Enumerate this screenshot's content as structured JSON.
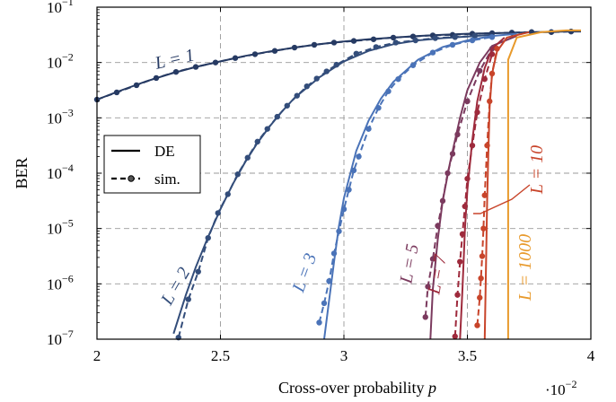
{
  "chart_data": {
    "type": "line",
    "title": "",
    "xlabel": "Cross-over probability p",
    "xlabel_main": "Cross-over probability ",
    "xlabel_var": "p",
    "x_multiplier_base": "·10",
    "x_multiplier_exp": "−2",
    "ylabel": "BER",
    "xlim": [
      2,
      4
    ],
    "ylim_log10": [
      -7,
      -1
    ],
    "y_scale": "log",
    "grid": true,
    "x_ticks": [
      2,
      2.5,
      3,
      3.5,
      4
    ],
    "x_tick_labels": [
      "2",
      "2.5",
      "3",
      "3.5",
      "4"
    ],
    "y_ticks_exp": [
      -7,
      -6,
      -5,
      -4,
      -3,
      -2,
      -1
    ],
    "y_tick_labels": [
      {
        "base": "10",
        "exp": "−7"
      },
      {
        "base": "10",
        "exp": "−6"
      },
      {
        "base": "10",
        "exp": "−5"
      },
      {
        "base": "10",
        "exp": "−4"
      },
      {
        "base": "10",
        "exp": "−3"
      },
      {
        "base": "10",
        "exp": "−2"
      },
      {
        "base": "10",
        "exp": "−1"
      }
    ],
    "legend": {
      "placement": "left",
      "entries": [
        {
          "label": "DE",
          "style": "solid"
        },
        {
          "label": "sim.",
          "style": "dashed-marker"
        }
      ]
    },
    "series": [
      {
        "name": "L = 1",
        "color": "#263a63",
        "de": [
          [
            2.0,
            -2.67
          ],
          [
            2.1,
            -2.5
          ],
          [
            2.2,
            -2.34
          ],
          [
            2.3,
            -2.2
          ],
          [
            2.4,
            -2.08
          ],
          [
            2.5,
            -1.98
          ],
          [
            2.6,
            -1.88
          ],
          [
            2.7,
            -1.8
          ],
          [
            2.8,
            -1.73
          ],
          [
            2.9,
            -1.67
          ],
          [
            3.0,
            -1.62
          ],
          [
            3.1,
            -1.58
          ],
          [
            3.2,
            -1.55
          ],
          [
            3.3,
            -1.52
          ],
          [
            3.4,
            -1.5
          ],
          [
            3.5,
            -1.48
          ],
          [
            3.6,
            -1.47
          ],
          [
            3.7,
            -1.46
          ],
          [
            3.8,
            -1.45
          ],
          [
            3.9,
            -1.44
          ],
          [
            3.96,
            -1.44
          ]
        ],
        "sim": [
          [
            2.0,
            -2.67
          ],
          [
            2.08,
            -2.54
          ],
          [
            2.16,
            -2.41
          ],
          [
            2.24,
            -2.28
          ],
          [
            2.32,
            -2.17
          ],
          [
            2.4,
            -2.08
          ],
          [
            2.48,
            -2.0
          ],
          [
            2.56,
            -1.92
          ],
          [
            2.64,
            -1.85
          ],
          [
            2.72,
            -1.79
          ],
          [
            2.8,
            -1.73
          ],
          [
            2.88,
            -1.68
          ],
          [
            2.96,
            -1.64
          ],
          [
            3.04,
            -1.61
          ],
          [
            3.12,
            -1.58
          ],
          [
            3.2,
            -1.55
          ],
          [
            3.28,
            -1.53
          ],
          [
            3.36,
            -1.51
          ],
          [
            3.44,
            -1.5
          ],
          [
            3.52,
            -1.48
          ],
          [
            3.6,
            -1.47
          ],
          [
            3.68,
            -1.46
          ],
          [
            3.76,
            -1.45
          ],
          [
            3.84,
            -1.45
          ],
          [
            3.92,
            -1.44
          ]
        ]
      },
      {
        "name": "L = 2",
        "color": "#334d7a",
        "de": [
          [
            2.31,
            -6.9
          ],
          [
            2.36,
            -6.2
          ],
          [
            2.4,
            -5.7
          ],
          [
            2.45,
            -5.15
          ],
          [
            2.5,
            -4.65
          ],
          [
            2.55,
            -4.2
          ],
          [
            2.6,
            -3.8
          ],
          [
            2.65,
            -3.45
          ],
          [
            2.7,
            -3.15
          ],
          [
            2.75,
            -2.88
          ],
          [
            2.8,
            -2.64
          ],
          [
            2.9,
            -2.27
          ],
          [
            3.0,
            -1.98
          ],
          [
            3.1,
            -1.79
          ],
          [
            3.2,
            -1.67
          ],
          [
            3.3,
            -1.6
          ],
          [
            3.4,
            -1.56
          ],
          [
            3.5,
            -1.53
          ],
          [
            3.6,
            -1.5
          ]
        ],
        "sim": [
          [
            2.33,
            -6.97
          ],
          [
            2.37,
            -6.28
          ],
          [
            2.41,
            -5.78
          ],
          [
            2.45,
            -5.17
          ],
          [
            2.49,
            -4.72
          ],
          [
            2.53,
            -4.38
          ],
          [
            2.57,
            -4.02
          ],
          [
            2.61,
            -3.72
          ],
          [
            2.65,
            -3.43
          ],
          [
            2.69,
            -3.2
          ],
          [
            2.73,
            -2.98
          ],
          [
            2.77,
            -2.78
          ],
          [
            2.81,
            -2.6
          ],
          [
            2.85,
            -2.43
          ],
          [
            2.89,
            -2.29
          ],
          [
            2.93,
            -2.16
          ],
          [
            2.97,
            -2.04
          ],
          [
            3.05,
            -1.84
          ],
          [
            3.13,
            -1.72
          ],
          [
            3.21,
            -1.64
          ],
          [
            3.29,
            -1.6
          ],
          [
            3.37,
            -1.56
          ],
          [
            3.45,
            -1.54
          ],
          [
            3.53,
            -1.52
          ]
        ]
      },
      {
        "name": "L = 3",
        "color": "#4a73b8",
        "de": [
          [
            2.92,
            -7.0
          ],
          [
            2.94,
            -6.3
          ],
          [
            2.96,
            -5.6
          ],
          [
            2.98,
            -4.95
          ],
          [
            3.0,
            -4.45
          ],
          [
            3.05,
            -3.6
          ],
          [
            3.1,
            -3.05
          ],
          [
            3.15,
            -2.65
          ],
          [
            3.2,
            -2.35
          ],
          [
            3.3,
            -1.95
          ],
          [
            3.4,
            -1.72
          ],
          [
            3.5,
            -1.6
          ],
          [
            3.6,
            -1.52
          ],
          [
            3.7,
            -1.48
          ]
        ],
        "sim": [
          [
            2.9,
            -6.7
          ],
          [
            2.92,
            -6.35
          ],
          [
            2.94,
            -5.95
          ],
          [
            2.96,
            -5.45
          ],
          [
            2.98,
            -5.05
          ],
          [
            3.0,
            -4.65
          ],
          [
            3.02,
            -4.3
          ],
          [
            3.04,
            -3.95
          ],
          [
            3.06,
            -3.7
          ],
          [
            3.1,
            -3.2
          ],
          [
            3.14,
            -2.82
          ],
          [
            3.18,
            -2.52
          ],
          [
            3.22,
            -2.3
          ],
          [
            3.28,
            -2.05
          ],
          [
            3.36,
            -1.82
          ],
          [
            3.44,
            -1.68
          ],
          [
            3.52,
            -1.6
          ],
          [
            3.6,
            -1.54
          ]
        ]
      },
      {
        "name": "L = 5",
        "color": "#7b3a5e",
        "de": [
          [
            3.35,
            -7.0
          ],
          [
            3.36,
            -6.1
          ],
          [
            3.38,
            -5.2
          ],
          [
            3.4,
            -4.5
          ],
          [
            3.43,
            -3.8
          ],
          [
            3.47,
            -3.0
          ],
          [
            3.5,
            -2.5
          ],
          [
            3.55,
            -2.0
          ],
          [
            3.6,
            -1.7
          ],
          [
            3.7,
            -1.52
          ]
        ],
        "sim": [
          [
            3.33,
            -6.6
          ],
          [
            3.34,
            -6.05
          ],
          [
            3.36,
            -5.55
          ],
          [
            3.38,
            -4.95
          ],
          [
            3.4,
            -4.5
          ],
          [
            3.42,
            -4.0
          ],
          [
            3.44,
            -3.65
          ],
          [
            3.46,
            -3.3
          ],
          [
            3.5,
            -2.7
          ],
          [
            3.55,
            -2.15
          ],
          [
            3.6,
            -1.75
          ]
        ]
      },
      {
        "name": "L = 7",
        "color": "#9e2a3c",
        "de": [
          [
            3.47,
            -7.0
          ],
          [
            3.48,
            -6.1
          ],
          [
            3.49,
            -5.0
          ],
          [
            3.5,
            -4.3
          ],
          [
            3.52,
            -3.4
          ],
          [
            3.54,
            -2.7
          ],
          [
            3.57,
            -2.1
          ],
          [
            3.6,
            -1.75
          ],
          [
            3.65,
            -1.55
          ]
        ],
        "sim": [
          [
            3.45,
            -6.95
          ],
          [
            3.46,
            -6.2
          ],
          [
            3.47,
            -5.6
          ],
          [
            3.48,
            -5.1
          ],
          [
            3.49,
            -4.6
          ],
          [
            3.5,
            -4.1
          ],
          [
            3.52,
            -3.5
          ],
          [
            3.54,
            -2.9
          ],
          [
            3.57,
            -2.3
          ],
          [
            3.6,
            -1.85
          ]
        ]
      },
      {
        "name": "L = 10",
        "color": "#c8442a",
        "de": [
          [
            3.57,
            -7.0
          ],
          [
            3.575,
            -5.8
          ],
          [
            3.58,
            -4.5
          ],
          [
            3.585,
            -3.6
          ],
          [
            3.59,
            -2.8
          ],
          [
            3.6,
            -2.2
          ],
          [
            3.62,
            -1.8
          ],
          [
            3.66,
            -1.55
          ],
          [
            3.75,
            -1.45
          ]
        ],
        "sim": [
          [
            3.54,
            -6.75
          ],
          [
            3.55,
            -6.25
          ],
          [
            3.555,
            -5.9
          ],
          [
            3.56,
            -5.5
          ],
          [
            3.565,
            -5.0
          ],
          [
            3.57,
            -4.4
          ],
          [
            3.58,
            -3.5
          ],
          [
            3.59,
            -2.7
          ],
          [
            3.6,
            -2.2
          ],
          [
            3.62,
            -1.75
          ]
        ]
      },
      {
        "name": "L = 1000",
        "color": "#e89a2c",
        "de": [
          [
            3.665,
            -7.0
          ],
          [
            3.665,
            -1.95
          ],
          [
            3.7,
            -1.55
          ],
          [
            3.8,
            -1.45
          ],
          [
            3.9,
            -1.42
          ],
          [
            3.96,
            -1.42
          ]
        ],
        "sim": []
      }
    ]
  },
  "labels": {
    "l1": "L = 1",
    "l2": "L = 2",
    "l3": "L = 3",
    "l5": "L = 5",
    "l7": "L = 7",
    "l10": "L = 10",
    "l1000": "L = 1000"
  }
}
